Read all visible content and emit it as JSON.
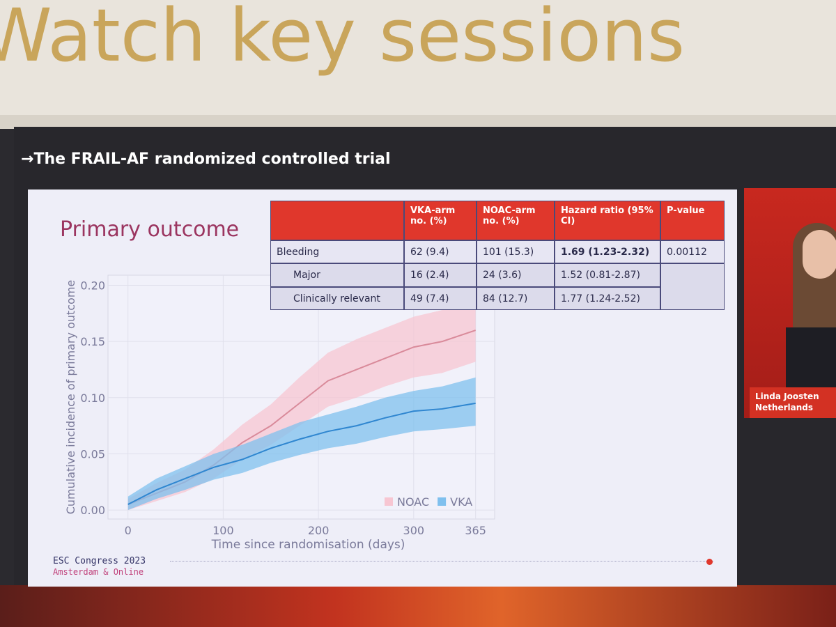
{
  "banner": {
    "text": "Watch key sessions"
  },
  "slide": {
    "title": "The FRAIL-AF randomized controlled trial",
    "heading": "Primary outcome"
  },
  "table": {
    "headers": [
      "VKA-arm no. (%)",
      "NOAC-arm no. (%)",
      "Hazard ratio (95% CI)",
      "P-value"
    ],
    "rows": [
      [
        "Bleeding",
        "62 (9.4)",
        "101 (15.3)",
        "1.69 (1.23-2.32)",
        "0.00112"
      ],
      [
        "Major",
        "16 (2.4)",
        "24 (3.6)",
        "1.52 (0.81-2.87)"
      ],
      [
        "Clinically relevant",
        "49 (7.4)",
        "84 (12.7)",
        "1.77 (1.24-2.52)"
      ]
    ]
  },
  "chart_data": {
    "type": "line",
    "x_label": "Time since randomisation (days)",
    "y_label": "Cumulative incidence of primary outcome",
    "x": [
      0,
      30,
      60,
      90,
      120,
      150,
      180,
      210,
      240,
      270,
      300,
      330,
      365
    ],
    "series": [
      {
        "name": "NOAC",
        "color": "#d98a9a",
        "band_color": "#f7c6d2",
        "values": [
          0.005,
          0.015,
          0.025,
          0.04,
          0.06,
          0.075,
          0.095,
          0.115,
          0.125,
          0.135,
          0.145,
          0.15,
          0.16
        ],
        "lower": [
          0,
          0.008,
          0.016,
          0.028,
          0.045,
          0.058,
          0.075,
          0.092,
          0.1,
          0.11,
          0.118,
          0.122,
          0.132
        ],
        "upper": [
          0.01,
          0.024,
          0.036,
          0.054,
          0.076,
          0.094,
          0.118,
          0.14,
          0.152,
          0.162,
          0.172,
          0.178,
          0.19
        ]
      },
      {
        "name": "VKA",
        "color": "#2f86d0",
        "band_color": "#7fc0ee",
        "values": [
          0.005,
          0.018,
          0.028,
          0.038,
          0.045,
          0.055,
          0.063,
          0.07,
          0.075,
          0.082,
          0.088,
          0.09,
          0.095
        ],
        "lower": [
          0,
          0.01,
          0.018,
          0.027,
          0.033,
          0.042,
          0.049,
          0.055,
          0.059,
          0.065,
          0.07,
          0.072,
          0.075
        ],
        "upper": [
          0.012,
          0.028,
          0.039,
          0.05,
          0.058,
          0.068,
          0.078,
          0.085,
          0.092,
          0.1,
          0.106,
          0.11,
          0.118
        ]
      }
    ],
    "xlim": [
      -21,
      385
    ],
    "ylim": [
      -0.008,
      0.209
    ],
    "xticks": [
      0,
      100,
      200,
      300,
      365
    ],
    "yticks": [
      {
        "value": 0,
        "label": "0.00"
      },
      0.05,
      {
        "value": 0.1,
        "label": "0.10"
      },
      0.15,
      {
        "value": 0.2,
        "label": "0.20"
      }
    ],
    "grid": true,
    "legend": "bottom-right"
  },
  "footer": {
    "event": "ESC Congress 2023",
    "place": "Amsterdam & Online"
  },
  "speaker": {
    "name": "Linda Joosten",
    "country": "Netherlands"
  }
}
